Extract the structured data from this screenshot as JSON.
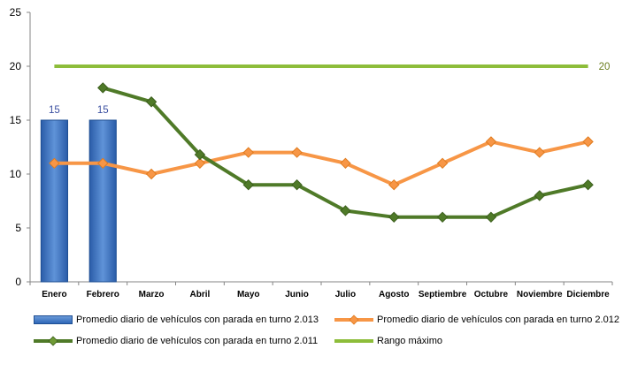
{
  "chart_data": {
    "type": "bar",
    "categories": [
      "Enero",
      "Febrero",
      "Marzo",
      "Abril",
      "Mayo",
      "Junio",
      "Julio",
      "Agosto",
      "Septiembre",
      "Octubre",
      "Noviembre",
      "Diciembre"
    ],
    "ylim": [
      0,
      25
    ],
    "yticks": [
      "0",
      "5",
      "10",
      "15",
      "20",
      "25"
    ],
    "grid": false,
    "legend_position": "bottom",
    "series": [
      {
        "name": "Promedio diario de vehículos con parada en turno 2.013",
        "kind": "bar",
        "color": "#2e67b8",
        "values": [
          15,
          15,
          null,
          null,
          null,
          null,
          null,
          null,
          null,
          null,
          null,
          null
        ],
        "data_labels": [
          "15",
          "15"
        ]
      },
      {
        "name": "Promedio diario de vehículos con parada en turno 2.012",
        "kind": "line",
        "marker": "diamond",
        "color": "#f79646",
        "values": [
          11,
          11,
          10,
          11,
          12,
          12,
          11,
          9,
          11,
          13,
          12,
          13
        ]
      },
      {
        "name": "Promedio diario de vehículos con parada en turno 2.011",
        "kind": "line",
        "marker": "diamond",
        "color": "#4f7a28",
        "values": [
          null,
          18,
          16.7,
          11.8,
          9,
          9,
          6.6,
          6,
          6,
          6,
          8,
          9
        ]
      },
      {
        "name": "Rango máximo",
        "kind": "line",
        "marker": "none",
        "color": "#8dbd3a",
        "values": [
          20,
          20,
          20,
          20,
          20,
          20,
          20,
          20,
          20,
          20,
          20,
          20
        ],
        "data_labels": [
          "20"
        ]
      }
    ]
  }
}
